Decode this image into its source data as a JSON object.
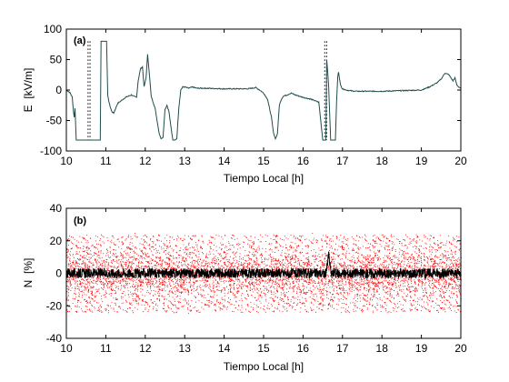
{
  "chart_data": [
    {
      "type": "line",
      "panel_label": "(a)",
      "xlabel": "Tiempo Local [h]",
      "ylabel": "E  [kV/m]",
      "xlim": [
        10,
        20
      ],
      "ylim": [
        -100,
        100
      ],
      "xticks": [
        "10",
        "11",
        "12",
        "13",
        "14",
        "15",
        "16",
        "17",
        "18",
        "19",
        "20"
      ],
      "yticks": [
        "-100",
        "-50",
        "0",
        "50",
        "100"
      ],
      "grid": false,
      "line_color": "#1f4d4d",
      "dotted_color": "#000000",
      "series": [
        {
          "x": [
            10.0,
            10.05,
            10.1,
            10.15,
            10.18,
            10.2,
            10.22,
            10.25,
            10.3,
            10.6,
            10.8,
            10.86,
            10.88,
            11.0,
            11.02,
            11.05,
            11.1,
            11.15,
            11.2,
            11.3,
            11.5,
            11.65,
            11.7,
            11.78,
            11.82,
            11.88,
            11.93,
            11.97,
            12.02,
            12.06,
            12.1,
            12.15,
            12.2,
            12.25,
            12.3,
            12.35,
            12.4,
            12.45,
            12.5,
            12.55,
            12.6,
            12.65,
            12.7,
            12.75,
            12.8,
            12.85,
            12.9,
            12.95,
            13.0,
            13.1,
            13.2,
            13.3,
            13.5,
            14.0,
            14.4,
            14.6,
            14.7,
            14.8,
            14.9,
            15.0,
            15.1,
            15.2,
            15.25,
            15.3,
            15.35,
            15.4,
            15.45,
            15.5,
            15.6,
            15.7,
            15.8,
            16.0,
            16.2,
            16.4,
            16.5,
            16.58,
            16.6,
            16.62,
            16.65,
            16.7,
            16.8,
            16.82,
            16.85,
            16.88,
            16.9,
            16.95,
            17.0,
            17.1,
            17.3,
            17.6,
            18.0,
            18.5,
            19.0,
            19.2,
            19.4,
            19.5,
            19.6,
            19.7,
            19.75,
            19.8,
            19.85,
            19.9,
            19.95,
            20.0
          ],
          "y": [
            0,
            -2,
            -5,
            -12,
            -35,
            -45,
            -30,
            -82,
            -82,
            -82,
            -82,
            -82,
            80,
            80,
            80,
            -10,
            -25,
            -35,
            -38,
            -22,
            -12,
            -8,
            -10,
            -12,
            15,
            35,
            38,
            5,
            20,
            58,
            30,
            -10,
            -20,
            -30,
            -50,
            -70,
            -80,
            -78,
            -32,
            -25,
            -35,
            -60,
            -82,
            -82,
            -80,
            -30,
            0,
            5,
            5,
            3,
            5,
            3,
            3,
            2,
            2,
            2,
            3,
            4,
            0,
            -5,
            -15,
            -45,
            -70,
            -80,
            -72,
            -25,
            -15,
            -10,
            -8,
            -5,
            -8,
            -12,
            -15,
            -20,
            -82,
            -82,
            50,
            35,
            5,
            -82,
            -82,
            -82,
            -20,
            22,
            30,
            8,
            2,
            0,
            -2,
            -2,
            -2,
            -1,
            0,
            5,
            12,
            18,
            28,
            25,
            20,
            15,
            20,
            8,
            5,
            3
          ]
        }
      ],
      "dotted_lines_x": [
        10.55,
        10.6,
        16.55,
        16.6
      ]
    },
    {
      "type": "scatter",
      "panel_label": "(b)",
      "xlabel": "Tiempo Local [h]",
      "ylabel": "N  [%]",
      "xlim": [
        10,
        20
      ],
      "ylim": [
        -40,
        40
      ],
      "xticks": [
        "10",
        "11",
        "12",
        "13",
        "14",
        "15",
        "16",
        "17",
        "18",
        "19",
        "20"
      ],
      "yticks": [
        "-40",
        "-20",
        "0",
        "20",
        "40"
      ],
      "grid": false,
      "scatter_color": "#ff0000",
      "line_color": "#000000",
      "scatter_spread": 12,
      "scatter_max": 35,
      "line_amplitude": 3,
      "spike": {
        "x": 16.65,
        "y": 12
      }
    }
  ]
}
